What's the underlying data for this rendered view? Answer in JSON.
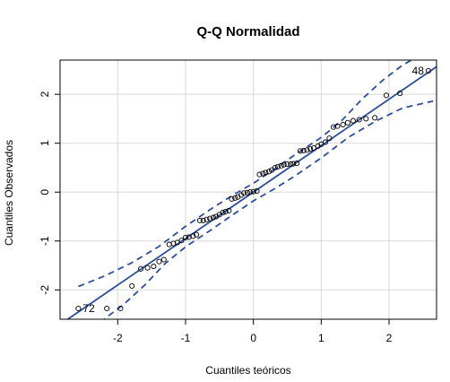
{
  "chart_data": {
    "type": "scatter",
    "title": "Q-Q Normalidad",
    "xlabel": "Cuantiles teóricos",
    "ylabel": "Cuantiles Observados",
    "xlim": [
      -2.85,
      2.7
    ],
    "ylim": [
      -2.6,
      2.7
    ],
    "xticks": [
      -2,
      -1,
      0,
      1,
      2
    ],
    "yticks": [
      -2,
      -1,
      0,
      1,
      2
    ],
    "grid": true,
    "colors": {
      "line": "#2a4ea0",
      "band": "#2a4ea0",
      "points": "#000000",
      "grid": "#d8d8d8"
    },
    "points": {
      "x": [
        -2.58,
        -2.16,
        -1.96,
        -1.79,
        -1.66,
        -1.56,
        -1.47,
        -1.39,
        -1.32,
        -1.24,
        -1.18,
        -1.12,
        -1.06,
        -1.0,
        -0.95,
        -0.89,
        -0.84,
        -0.79,
        -0.74,
        -0.69,
        -0.64,
        -0.59,
        -0.55,
        -0.5,
        -0.45,
        -0.41,
        -0.36,
        -0.32,
        -0.27,
        -0.23,
        -0.18,
        -0.14,
        -0.09,
        -0.05,
        0.0,
        0.05,
        0.09,
        0.14,
        0.18,
        0.23,
        0.27,
        0.32,
        0.36,
        0.41,
        0.45,
        0.5,
        0.55,
        0.59,
        0.64,
        0.69,
        0.74,
        0.79,
        0.84,
        0.89,
        0.95,
        1.0,
        1.06,
        1.12,
        1.18,
        1.24,
        1.32,
        1.39,
        1.47,
        1.56,
        1.66,
        1.79,
        1.96,
        2.16,
        2.58
      ],
      "y": [
        -2.38,
        -2.38,
        -2.38,
        -1.92,
        -1.57,
        -1.55,
        -1.52,
        -1.42,
        -1.38,
        -1.07,
        -1.05,
        -1.03,
        -0.99,
        -0.93,
        -0.92,
        -0.9,
        -0.87,
        -0.58,
        -0.58,
        -0.56,
        -0.54,
        -0.52,
        -0.5,
        -0.46,
        -0.42,
        -0.4,
        -0.38,
        -0.14,
        -0.12,
        -0.1,
        -0.06,
        -0.02,
        -0.01,
        0.0,
        0.01,
        0.02,
        0.36,
        0.38,
        0.4,
        0.42,
        0.45,
        0.5,
        0.52,
        0.54,
        0.56,
        0.57,
        0.57,
        0.58,
        0.59,
        0.84,
        0.85,
        0.86,
        0.88,
        0.9,
        0.94,
        0.98,
        1.02,
        1.1,
        1.33,
        1.35,
        1.38,
        1.42,
        1.46,
        1.48,
        1.5,
        1.52,
        1.98,
        2.02,
        2.48
      ]
    },
    "reference_line": {
      "intercept": 0.0,
      "slope": 0.95
    },
    "confidence_band": {
      "upper": [
        [
          -2.58,
          -1.93
        ],
        [
          -2.2,
          -1.72
        ],
        [
          -1.8,
          -1.45
        ],
        [
          -1.4,
          -1.12
        ],
        [
          -1.0,
          -0.7
        ],
        [
          -0.6,
          -0.32
        ],
        [
          -0.3,
          -0.06
        ],
        [
          0.0,
          0.18
        ],
        [
          0.3,
          0.46
        ],
        [
          0.6,
          0.75
        ],
        [
          1.0,
          1.12
        ],
        [
          1.3,
          1.46
        ],
        [
          1.6,
          1.9
        ],
        [
          1.9,
          2.28
        ],
        [
          2.2,
          2.6
        ],
        [
          2.65,
          2.95
        ]
      ],
      "lower": [
        [
          -2.65,
          -3.05
        ],
        [
          -2.2,
          -2.6
        ],
        [
          -1.9,
          -2.28
        ],
        [
          -1.6,
          -1.9
        ],
        [
          -1.3,
          -1.46
        ],
        [
          -1.0,
          -1.12
        ],
        [
          -0.6,
          -0.75
        ],
        [
          -0.3,
          -0.46
        ],
        [
          0.0,
          -0.18
        ],
        [
          0.3,
          0.06
        ],
        [
          0.6,
          0.32
        ],
        [
          1.0,
          0.7
        ],
        [
          1.4,
          1.12
        ],
        [
          1.8,
          1.45
        ],
        [
          2.2,
          1.72
        ],
        [
          2.65,
          1.86
        ]
      ]
    },
    "annotations": [
      {
        "text": "48",
        "x": 2.58,
        "y": 2.48
      },
      {
        "text": "72",
        "x": -2.58,
        "y": -2.38
      }
    ]
  }
}
